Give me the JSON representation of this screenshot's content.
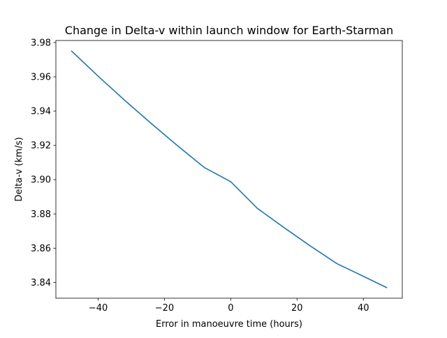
{
  "chart_data": {
    "type": "line",
    "title": "Change in Delta-v within launch window for Earth-Starman",
    "xlabel": "Error in manoeuvre time (hours)",
    "ylabel": "Delta-v (km/s)",
    "xlim": [
      -52.75,
      51.75
    ],
    "ylim": [
      3.8308,
      3.9812
    ],
    "x_ticks": [
      -40,
      -20,
      0,
      20,
      40
    ],
    "x_tick_labels": [
      "−40",
      "−20",
      "0",
      "20",
      "40"
    ],
    "y_ticks": [
      3.84,
      3.86,
      3.88,
      3.9,
      3.92,
      3.94,
      3.96,
      3.98
    ],
    "y_tick_labels": [
      "3.84",
      "3.86",
      "3.88",
      "3.90",
      "3.92",
      "3.94",
      "3.96",
      "3.98"
    ],
    "grid": false,
    "series": [
      {
        "name": "Delta-v",
        "color": "#1f77b4",
        "x": [
          -48,
          -40,
          -32,
          -24,
          -16,
          -8,
          0,
          8,
          16,
          24,
          32,
          40,
          47
        ],
        "values": [
          3.975,
          3.9604,
          3.9463,
          3.9328,
          3.9197,
          3.9071,
          3.8988,
          3.8833,
          3.8721,
          3.8613,
          3.851,
          3.8436,
          3.837
        ]
      }
    ]
  }
}
